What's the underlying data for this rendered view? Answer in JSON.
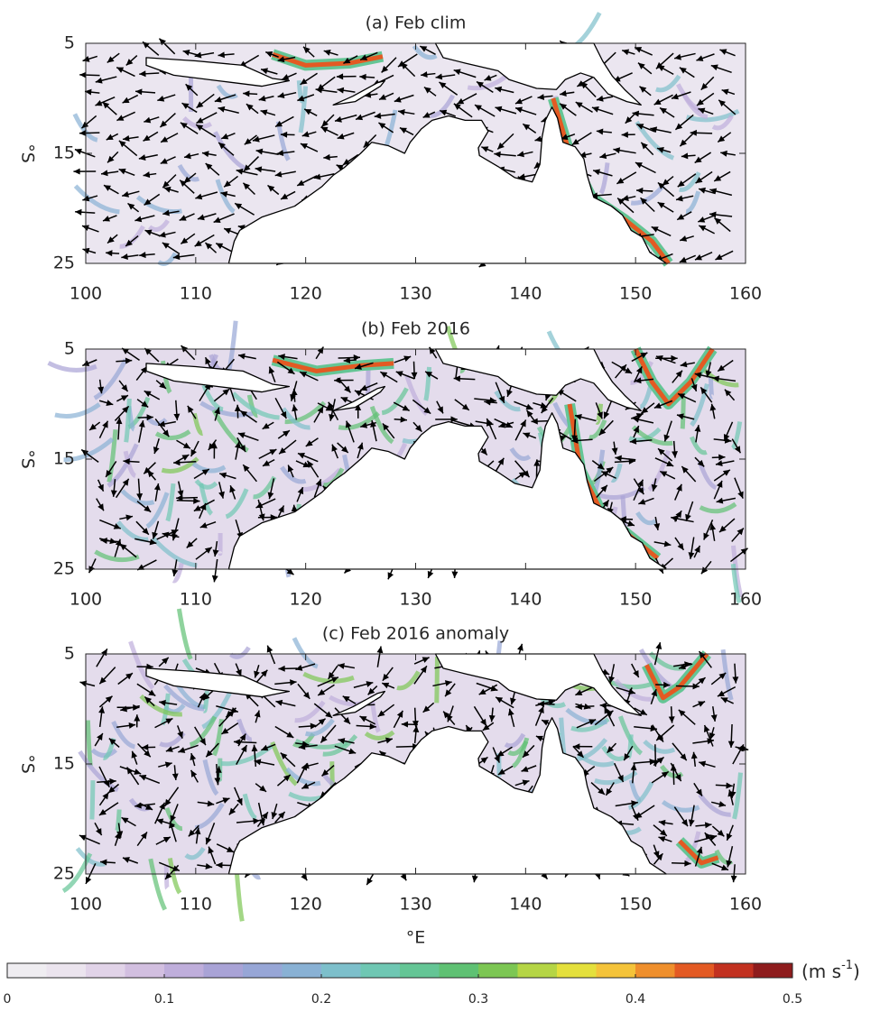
{
  "panels": [
    {
      "title": "(a) Feb clim",
      "xlim": [
        100,
        160
      ],
      "ylim": [
        5,
        25
      ],
      "xticks": [
        100,
        110,
        120,
        130,
        140,
        150,
        160
      ],
      "yticks": [
        5,
        15,
        25
      ]
    },
    {
      "title": "(b) Feb 2016",
      "xlim": [
        100,
        160
      ],
      "ylim": [
        5,
        25
      ],
      "xticks": [
        100,
        110,
        120,
        130,
        140,
        150,
        160
      ],
      "yticks": [
        5,
        15,
        25
      ]
    },
    {
      "title": "(c) Feb 2016 anomaly",
      "xlim": [
        100,
        160
      ],
      "ylim": [
        5,
        25
      ],
      "xticks": [
        100,
        110,
        120,
        130,
        140,
        150,
        160
      ],
      "yticks": [
        5,
        15,
        25
      ]
    }
  ],
  "x_label": "°E",
  "y_label": "°S",
  "colorbar": {
    "lim": [
      0,
      0.5
    ],
    "ticks": [
      0,
      0.1,
      0.2,
      0.3,
      0.4,
      0.5
    ],
    "unit_base": "(m s",
    "unit_exp": "-1",
    "unit_close": ")",
    "colors": [
      "#efedf1",
      "#ebe4ee",
      "#e1d3e8",
      "#d2bfe0",
      "#bfaedb",
      "#a9a3d6",
      "#97a6d6",
      "#89b1d4",
      "#7dbfcb",
      "#6fc7b3",
      "#64c595",
      "#5fc173",
      "#7cc653",
      "#b5d545",
      "#e4e03c",
      "#f4c33a",
      "#ef8f2c",
      "#e35a23",
      "#c23120",
      "#8e1c1d"
    ]
  }
}
